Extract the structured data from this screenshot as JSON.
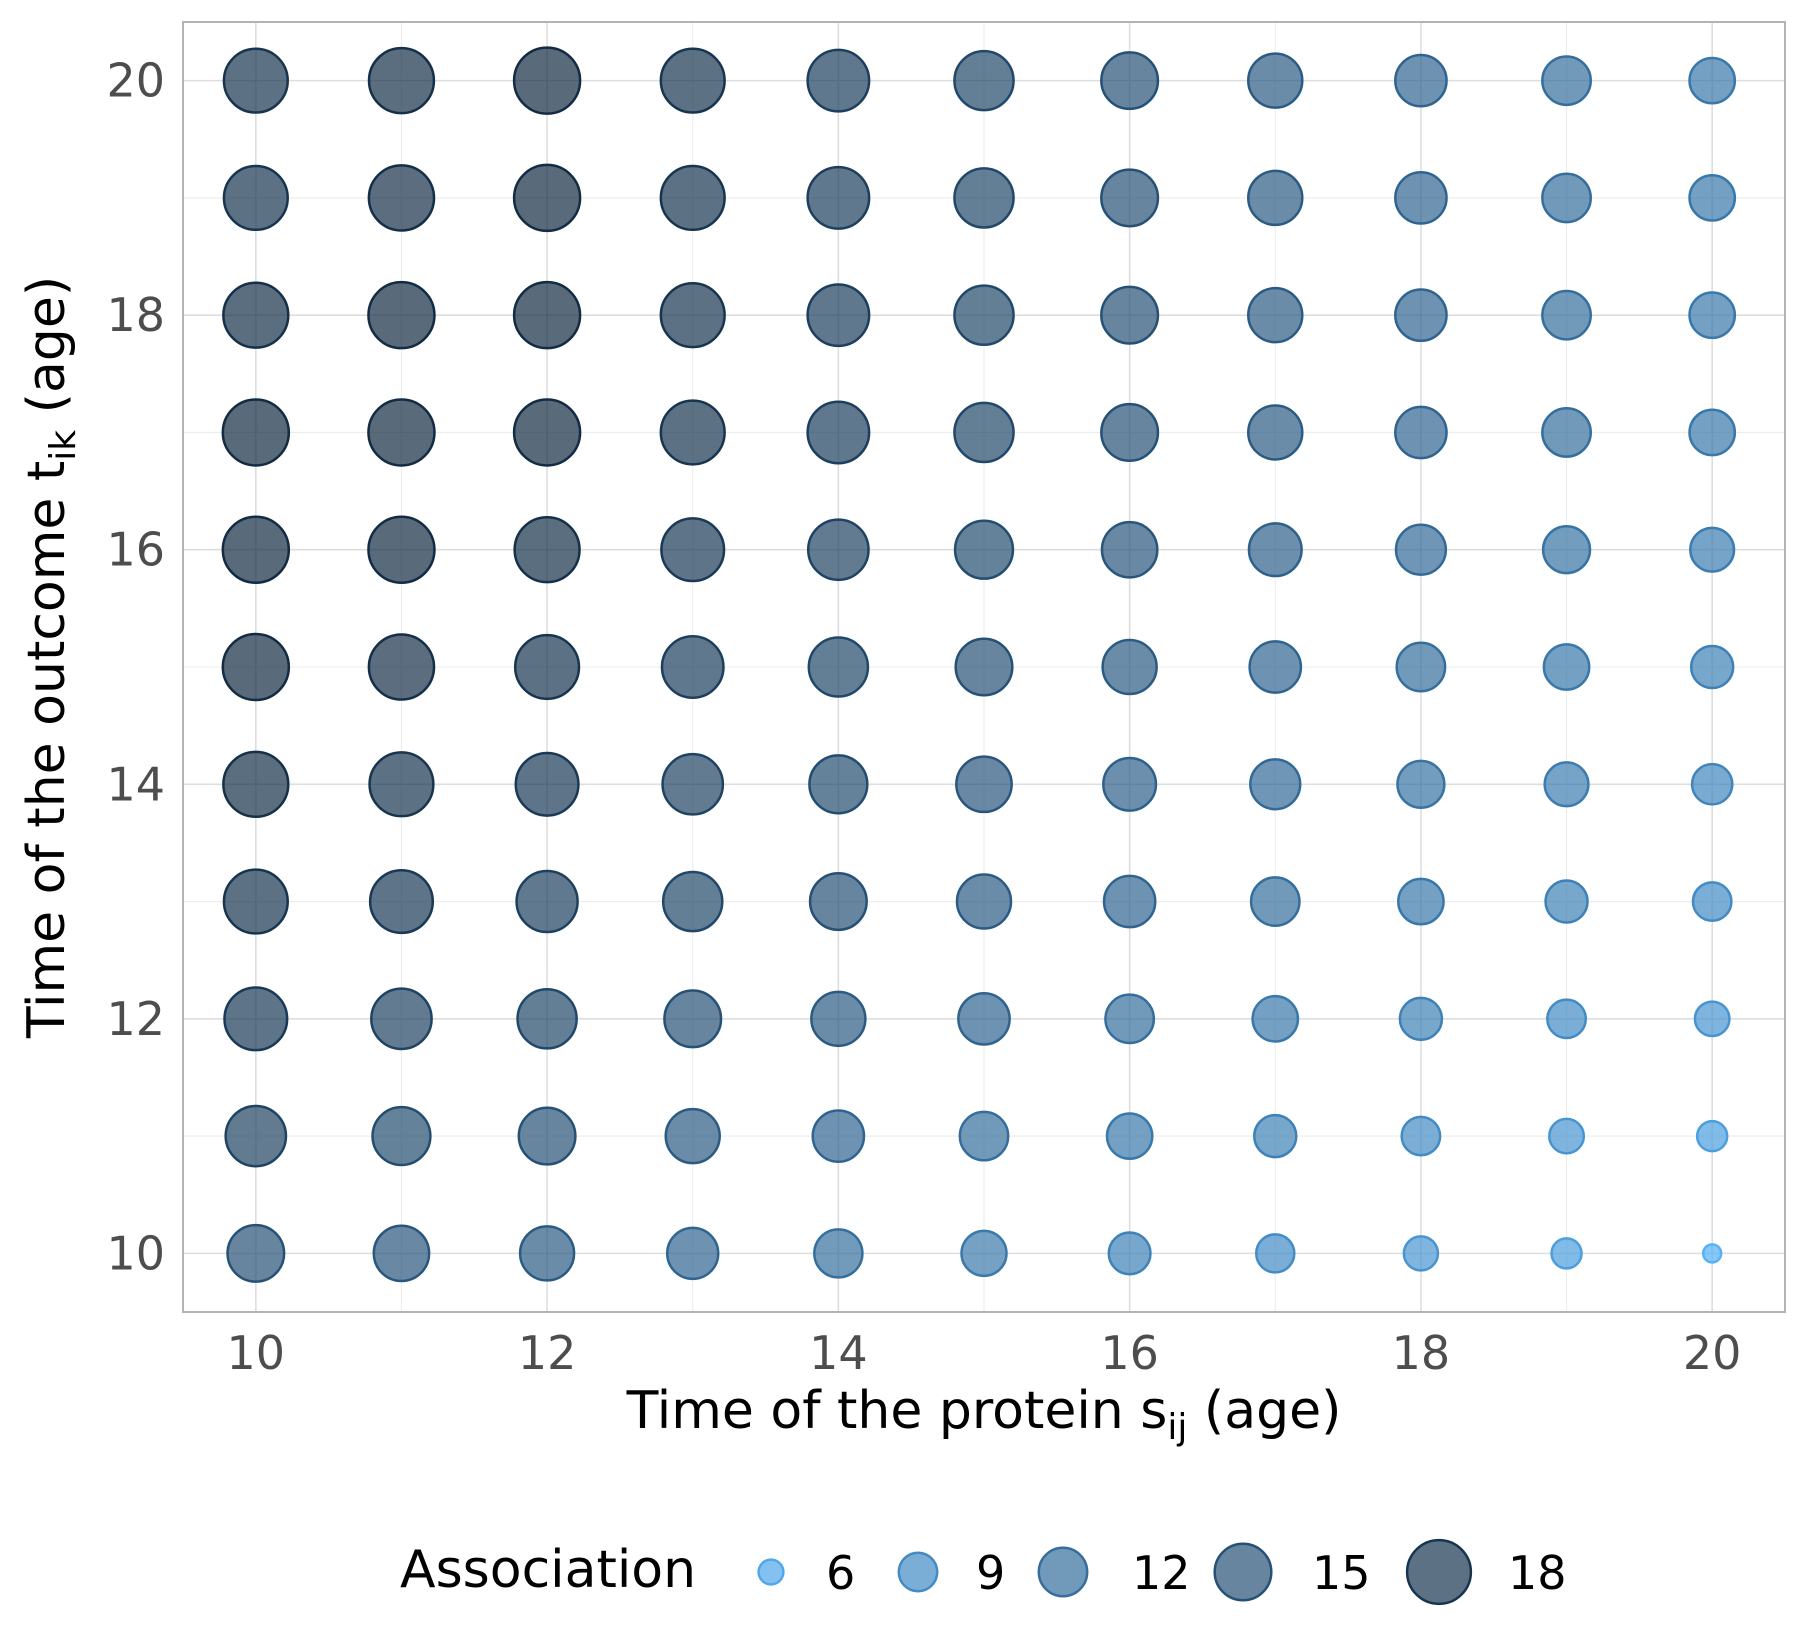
{
  "chart_data": {
    "type": "scatter",
    "title": "",
    "xlabel": {
      "main": "Time of the protein s",
      "sub": "ij",
      "tail": " (age)"
    },
    "ylabel": {
      "main": "Time of the outcome t",
      "sub": "ik",
      "tail": " (age)"
    },
    "xlim": [
      9.5,
      20.5
    ],
    "ylim": [
      9.5,
      20.5
    ],
    "x_ticks": [
      10,
      12,
      14,
      16,
      18,
      20
    ],
    "y_ticks": [
      10,
      12,
      14,
      16,
      18,
      20
    ],
    "x_tick_labels": [
      "10",
      "12",
      "14",
      "16",
      "18",
      "20"
    ],
    "y_tick_labels": [
      "10",
      "12",
      "14",
      "16",
      "18",
      "20"
    ],
    "grid": true,
    "x": [
      10,
      11,
      12,
      13,
      14,
      15,
      16,
      17,
      18,
      19,
      20
    ],
    "y": [
      10,
      11,
      12,
      13,
      14,
      15,
      16,
      17,
      18,
      19,
      20
    ],
    "association_grid": [
      [
        15.0,
        14.5,
        14.0,
        12.9,
        11.9,
        10.9,
        9.9,
        8.9,
        7.9,
        7.0,
        5.0
      ],
      [
        16.5,
        15.5,
        15.0,
        14.0,
        13.0,
        12.0,
        11.0,
        10.0,
        9.0,
        8.0,
        7.0
      ],
      [
        17.5,
        16.5,
        16.0,
        15.0,
        14.0,
        13.0,
        12.0,
        11.0,
        10.0,
        9.0,
        8.0
      ],
      [
        18.0,
        17.5,
        16.8,
        16.0,
        15.0,
        14.0,
        13.0,
        12.0,
        11.0,
        10.0,
        9.0
      ],
      [
        18.5,
        18.0,
        17.5,
        16.5,
        15.5,
        14.5,
        13.5,
        12.5,
        11.5,
        10.5,
        9.5
      ],
      [
        19.0,
        18.6,
        18.0,
        17.0,
        16.0,
        15.0,
        14.0,
        13.0,
        12.0,
        11.0,
        10.0
      ],
      [
        19.0,
        19.0,
        18.5,
        17.5,
        16.5,
        15.5,
        14.5,
        13.5,
        12.5,
        11.5,
        10.5
      ],
      [
        19.0,
        19.0,
        19.0,
        18.0,
        17.0,
        16.0,
        15.0,
        14.0,
        13.0,
        12.0,
        11.0
      ],
      [
        18.5,
        19.0,
        19.0,
        18.0,
        17.0,
        16.0,
        15.0,
        14.0,
        13.0,
        12.0,
        11.0
      ],
      [
        18.0,
        18.6,
        19.0,
        18.0,
        17.0,
        16.0,
        15.0,
        14.0,
        13.0,
        12.0,
        11.0
      ],
      [
        18.0,
        18.5,
        19.0,
        18.0,
        17.0,
        16.0,
        15.0,
        14.0,
        13.0,
        12.0,
        11.0
      ]
    ],
    "legend": {
      "title": "Association",
      "position": "bottom",
      "breaks": [
        6,
        9,
        12,
        15,
        18
      ],
      "labels": [
        "6",
        "9",
        "12",
        "15",
        "18"
      ]
    },
    "colors": {
      "low": "#56b1f7",
      "high": "#132b43",
      "point_alpha": 0.7,
      "grid": "#dedede",
      "panel_border": "#b3b3b3"
    },
    "scales": {
      "size_domain": [
        4,
        19
      ],
      "color_domain": [
        5,
        19
      ]
    }
  }
}
